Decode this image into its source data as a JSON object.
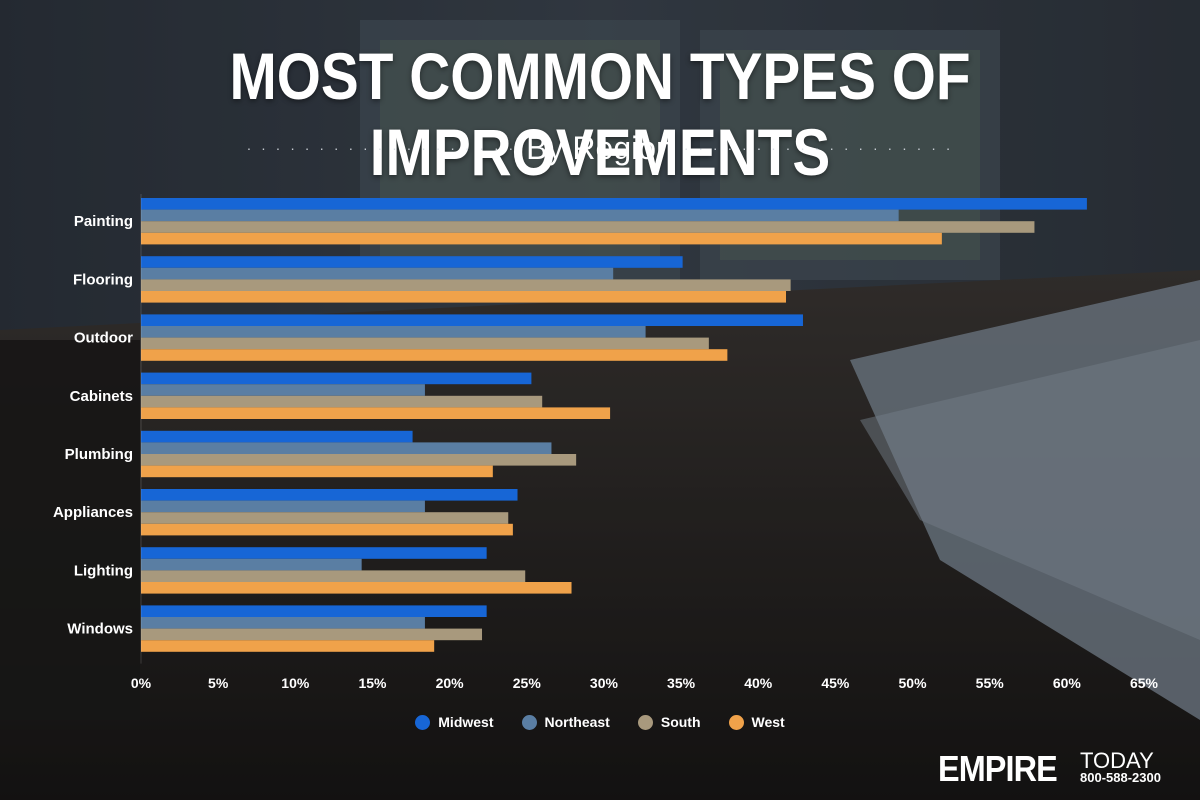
{
  "title": "MOST COMMON TYPES OF IMPROVEMENTS",
  "subtitle": "By Region",
  "brand": {
    "name": "EMPIRE",
    "suffix": "TODAY",
    "phone": "800-588-2300"
  },
  "colors": {
    "Midwest": "#1766d6",
    "Northeast": "#5a7ea3",
    "South": "#a8997d",
    "West": "#f0a24a"
  },
  "chart_data": {
    "type": "bar",
    "orientation": "horizontal",
    "categories": [
      "Painting",
      "Flooring",
      "Outdoor",
      "Cabinets",
      "Plumbing",
      "Appliances",
      "Lighting",
      "Windows"
    ],
    "series": [
      {
        "name": "Midwest",
        "values": [
          61.3,
          35.1,
          42.9,
          25.3,
          17.6,
          24.4,
          22.4,
          22.4
        ]
      },
      {
        "name": "Northeast",
        "values": [
          49.1,
          30.6,
          32.7,
          18.4,
          26.6,
          18.4,
          14.3,
          18.4
        ]
      },
      {
        "name": "South",
        "values": [
          57.9,
          42.1,
          36.8,
          26.0,
          28.2,
          23.8,
          24.9,
          22.1
        ]
      },
      {
        "name": "West",
        "values": [
          51.9,
          41.8,
          38.0,
          30.4,
          22.8,
          24.1,
          27.9,
          19.0
        ]
      }
    ],
    "x_ticks": [
      "0%",
      "5%",
      "10%",
      "15%",
      "20%",
      "25%",
      "30%",
      "35%",
      "40%",
      "45%",
      "50%",
      "55%",
      "60%",
      "65%"
    ],
    "xlim": [
      0,
      65
    ],
    "xlabel": "",
    "ylabel": "",
    "grid": false,
    "legend_position": "bottom"
  }
}
